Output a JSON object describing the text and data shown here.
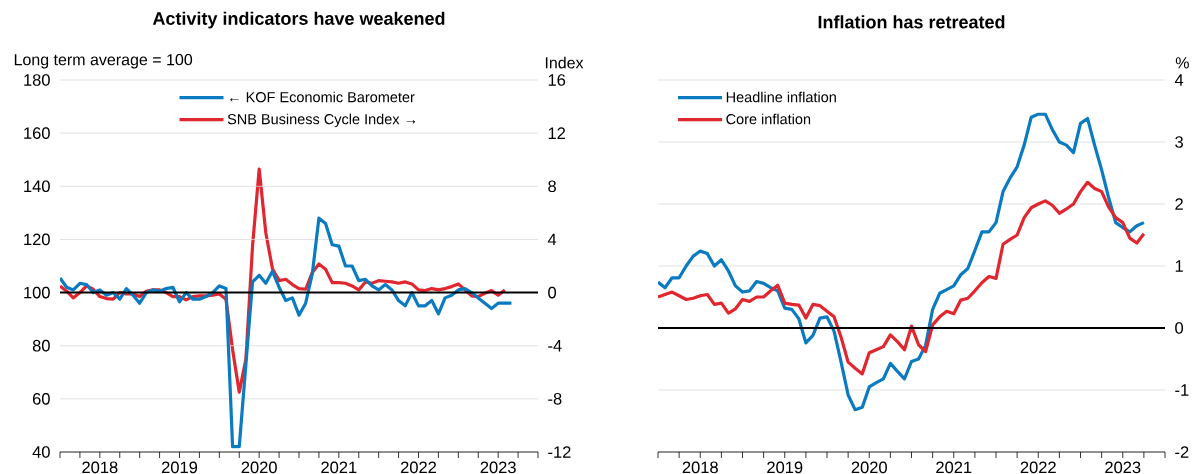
{
  "chart_data": [
    {
      "type": "line",
      "title": "Activity indicators have weakened",
      "ylabel": "Long term average = 100",
      "y2label": "Index",
      "x": [
        "2018-01",
        "2018-02",
        "2018-03",
        "2018-04",
        "2018-05",
        "2018-06",
        "2018-07",
        "2018-08",
        "2018-09",
        "2018-10",
        "2018-11",
        "2018-12",
        "2019-01",
        "2019-02",
        "2019-03",
        "2019-04",
        "2019-05",
        "2019-06",
        "2019-07",
        "2019-08",
        "2019-09",
        "2019-10",
        "2019-11",
        "2019-12",
        "2020-01",
        "2020-02",
        "2020-03",
        "2020-04",
        "2020-05",
        "2020-06",
        "2020-07",
        "2020-08",
        "2020-09",
        "2020-10",
        "2020-11",
        "2020-12",
        "2021-01",
        "2021-02",
        "2021-03",
        "2021-04",
        "2021-05",
        "2021-06",
        "2021-07",
        "2021-08",
        "2021-09",
        "2021-10",
        "2021-11",
        "2021-12",
        "2022-01",
        "2022-02",
        "2022-03",
        "2022-04",
        "2022-05",
        "2022-06",
        "2022-07",
        "2022-08",
        "2022-09",
        "2022-10",
        "2022-11",
        "2022-12",
        "2023-01",
        "2023-02",
        "2023-03",
        "2023-04",
        "2023-05",
        "2023-06",
        "2023-07",
        "2023-08",
        "2023-09"
      ],
      "series": [
        {
          "name": "← KOF Economic Barometer",
          "color": "#0a7bc1",
          "values": [
            105.5,
            102,
            101,
            103.5,
            103,
            100,
            101,
            99,
            100,
            97.5,
            101.5,
            99,
            96,
            100,
            101,
            100.5,
            101.5,
            102,
            96.5,
            100,
            97.5,
            97.5,
            98.5,
            100,
            102.5,
            101.5,
            42,
            42,
            73,
            104,
            106.5,
            103.5,
            108,
            102,
            97,
            98,
            91.5,
            96,
            107,
            128,
            126,
            118,
            117.5,
            110,
            110,
            104.5,
            105,
            102.5,
            101,
            103,
            101,
            97,
            95,
            100,
            95,
            95,
            97,
            92,
            98,
            99,
            101,
            101.5,
            100,
            98,
            96,
            94,
            96,
            96,
            96
          ]
        },
        {
          "name": "SNB Business Cycle Index →",
          "color": "#e0262f",
          "axis": "y2",
          "values": [
            0.5,
            0.1,
            -0.4,
            0,
            0.5,
            0.25,
            -0.3,
            -0.45,
            -0.5,
            0,
            -0.1,
            -0.1,
            -0.3,
            0.1,
            0.2,
            0.2,
            0,
            -0.3,
            -0.3,
            -0.55,
            -0.3,
            -0.25,
            -0.25,
            -0.2,
            -0.1,
            -0.5,
            -4.3,
            -7.5,
            -5,
            3.5,
            9.3,
            4.5,
            1.8,
            0.9,
            1,
            0.6,
            0.3,
            0.25,
            1.5,
            2.15,
            1.75,
            0.75,
            0.75,
            0.7,
            0.5,
            0.2,
            0.8,
            0.7,
            0.9,
            0.85,
            0.8,
            0.7,
            0.8,
            0.65,
            0.2,
            0.15,
            0.3,
            0.2,
            0.3,
            0.45,
            0.65,
            0.2,
            -0.25,
            -0.3,
            -0.05,
            0.15,
            -0.2,
            0.2,
            null
          ]
        }
      ],
      "xlim": [
        "2018-01",
        "2024-01"
      ],
      "xticks": [
        {
          "value": "2018-01",
          "label": null
        },
        {
          "value": "2018-04",
          "label": null
        },
        {
          "value": "2018-07",
          "label": "2018"
        },
        {
          "value": "2018-10",
          "label": null
        },
        {
          "value": "2019-01",
          "label": null
        },
        {
          "value": "2019-04",
          "label": null
        },
        {
          "value": "2019-07",
          "label": "2019"
        },
        {
          "value": "2019-10",
          "label": null
        },
        {
          "value": "2020-01",
          "label": null
        },
        {
          "value": "2020-04",
          "label": null
        },
        {
          "value": "2020-07",
          "label": "2020"
        },
        {
          "value": "2020-10",
          "label": null
        },
        {
          "value": "2021-01",
          "label": null
        },
        {
          "value": "2021-04",
          "label": null
        },
        {
          "value": "2021-07",
          "label": "2021"
        },
        {
          "value": "2021-10",
          "label": null
        },
        {
          "value": "2022-01",
          "label": null
        },
        {
          "value": "2022-04",
          "label": null
        },
        {
          "value": "2022-07",
          "label": "2022"
        },
        {
          "value": "2022-10",
          "label": null
        },
        {
          "value": "2023-01",
          "label": null
        },
        {
          "value": "2023-04",
          "label": null
        },
        {
          "value": "2023-07",
          "label": "2023"
        },
        {
          "value": "2023-10",
          "label": null
        },
        {
          "value": "2024-01",
          "label": null
        }
      ],
      "ylim": [
        40,
        180
      ],
      "yticks": [
        40,
        60,
        80,
        100,
        120,
        140,
        160,
        180
      ],
      "y2lim": [
        -12,
        16
      ],
      "y2ticks": [
        -12,
        -8,
        -4,
        0,
        4,
        8,
        12,
        16
      ],
      "ref_lines": [
        {
          "axis": "y",
          "value": 100
        }
      ],
      "grid": "y",
      "legend": "top"
    },
    {
      "type": "line",
      "title": "Inflation has retreated",
      "ylabel": "%",
      "x": [
        "2018-01",
        "2018-02",
        "2018-03",
        "2018-04",
        "2018-05",
        "2018-06",
        "2018-07",
        "2018-08",
        "2018-09",
        "2018-10",
        "2018-11",
        "2018-12",
        "2019-01",
        "2019-02",
        "2019-03",
        "2019-04",
        "2019-05",
        "2019-06",
        "2019-07",
        "2019-08",
        "2019-09",
        "2019-10",
        "2019-11",
        "2019-12",
        "2020-01",
        "2020-02",
        "2020-03",
        "2020-04",
        "2020-05",
        "2020-06",
        "2020-07",
        "2020-08",
        "2020-09",
        "2020-10",
        "2020-11",
        "2020-12",
        "2021-01",
        "2021-02",
        "2021-03",
        "2021-04",
        "2021-05",
        "2021-06",
        "2021-07",
        "2021-08",
        "2021-09",
        "2021-10",
        "2021-11",
        "2021-12",
        "2022-01",
        "2022-02",
        "2022-03",
        "2022-04",
        "2022-05",
        "2022-06",
        "2022-07",
        "2022-08",
        "2022-09",
        "2022-10",
        "2022-11",
        "2022-12",
        "2023-01",
        "2023-02",
        "2023-03",
        "2023-04",
        "2023-05",
        "2023-06",
        "2023-07",
        "2023-08",
        "2023-09",
        "2023-10"
      ],
      "series": [
        {
          "name": "Headline inflation",
          "color": "#0a7bc1",
          "values": [
            0.74,
            0.65,
            0.81,
            0.81,
            1,
            1.16,
            1.24,
            1.2,
            1,
            1.1,
            0.92,
            0.68,
            0.58,
            0.6,
            0.75,
            0.72,
            0.65,
            0.6,
            0.32,
            0.3,
            0.15,
            -0.24,
            -0.12,
            0.16,
            0.18,
            -0.05,
            -0.55,
            -1.08,
            -1.32,
            -1.28,
            -0.95,
            -0.88,
            -0.82,
            -0.57,
            -0.7,
            -0.82,
            -0.54,
            -0.5,
            -0.28,
            0.3,
            0.56,
            0.62,
            0.68,
            0.86,
            0.96,
            1.25,
            1.55,
            1.55,
            1.7,
            2.2,
            2.42,
            2.6,
            2.95,
            3.4,
            3.45,
            3.45,
            3.2,
            3,
            2.95,
            2.83,
            3.3,
            3.38,
            2.95,
            2.55,
            2.1,
            1.7,
            1.62,
            1.55,
            1.65,
            1.7
          ]
        },
        {
          "name": "Core inflation",
          "color": "#e0262f",
          "values": [
            0.5,
            0.54,
            0.58,
            0.52,
            0.46,
            0.48,
            0.52,
            0.54,
            0.38,
            0.4,
            0.24,
            0.31,
            0.46,
            0.43,
            0.5,
            0.5,
            0.6,
            0.69,
            0.4,
            0.38,
            0.37,
            0.16,
            0.38,
            0.36,
            0.27,
            0.18,
            -0.15,
            -0.55,
            -0.65,
            -0.74,
            -0.4,
            -0.35,
            -0.3,
            -0.11,
            -0.22,
            -0.35,
            0.03,
            -0.27,
            -0.38,
            0.05,
            0.18,
            0.27,
            0.23,
            0.45,
            0.48,
            0.6,
            0.73,
            0.83,
            0.8,
            1.35,
            1.43,
            1.5,
            1.78,
            1.94,
            2,
            2.05,
            1.98,
            1.85,
            1.92,
            2,
            2.2,
            2.35,
            2.25,
            2.2,
            1.95,
            1.78,
            1.7,
            1.45,
            1.37,
            1.52
          ]
        }
      ],
      "xlim": [
        "2018-01",
        "2024-01"
      ],
      "xticks": [
        {
          "value": "2018-01",
          "label": null
        },
        {
          "value": "2018-04",
          "label": null
        },
        {
          "value": "2018-07",
          "label": "2018"
        },
        {
          "value": "2018-10",
          "label": null
        },
        {
          "value": "2019-01",
          "label": null
        },
        {
          "value": "2019-04",
          "label": null
        },
        {
          "value": "2019-07",
          "label": "2019"
        },
        {
          "value": "2019-10",
          "label": null
        },
        {
          "value": "2020-01",
          "label": null
        },
        {
          "value": "2020-04",
          "label": null
        },
        {
          "value": "2020-07",
          "label": "2020"
        },
        {
          "value": "2020-10",
          "label": null
        },
        {
          "value": "2021-01",
          "label": null
        },
        {
          "value": "2021-04",
          "label": null
        },
        {
          "value": "2021-07",
          "label": "2021"
        },
        {
          "value": "2021-10",
          "label": null
        },
        {
          "value": "2022-01",
          "label": null
        },
        {
          "value": "2022-04",
          "label": null
        },
        {
          "value": "2022-07",
          "label": "2022"
        },
        {
          "value": "2022-10",
          "label": null
        },
        {
          "value": "2023-01",
          "label": null
        },
        {
          "value": "2023-04",
          "label": null
        },
        {
          "value": "2023-07",
          "label": "2023"
        },
        {
          "value": "2023-10",
          "label": null
        },
        {
          "value": "2024-01",
          "label": null
        }
      ],
      "ylim": [
        -2,
        4
      ],
      "yticks": [
        -2,
        -1,
        0,
        1,
        2,
        3,
        4
      ],
      "ref_lines": [
        {
          "axis": "y",
          "value": 0
        }
      ],
      "grid": "y",
      "legend": "top left"
    }
  ]
}
